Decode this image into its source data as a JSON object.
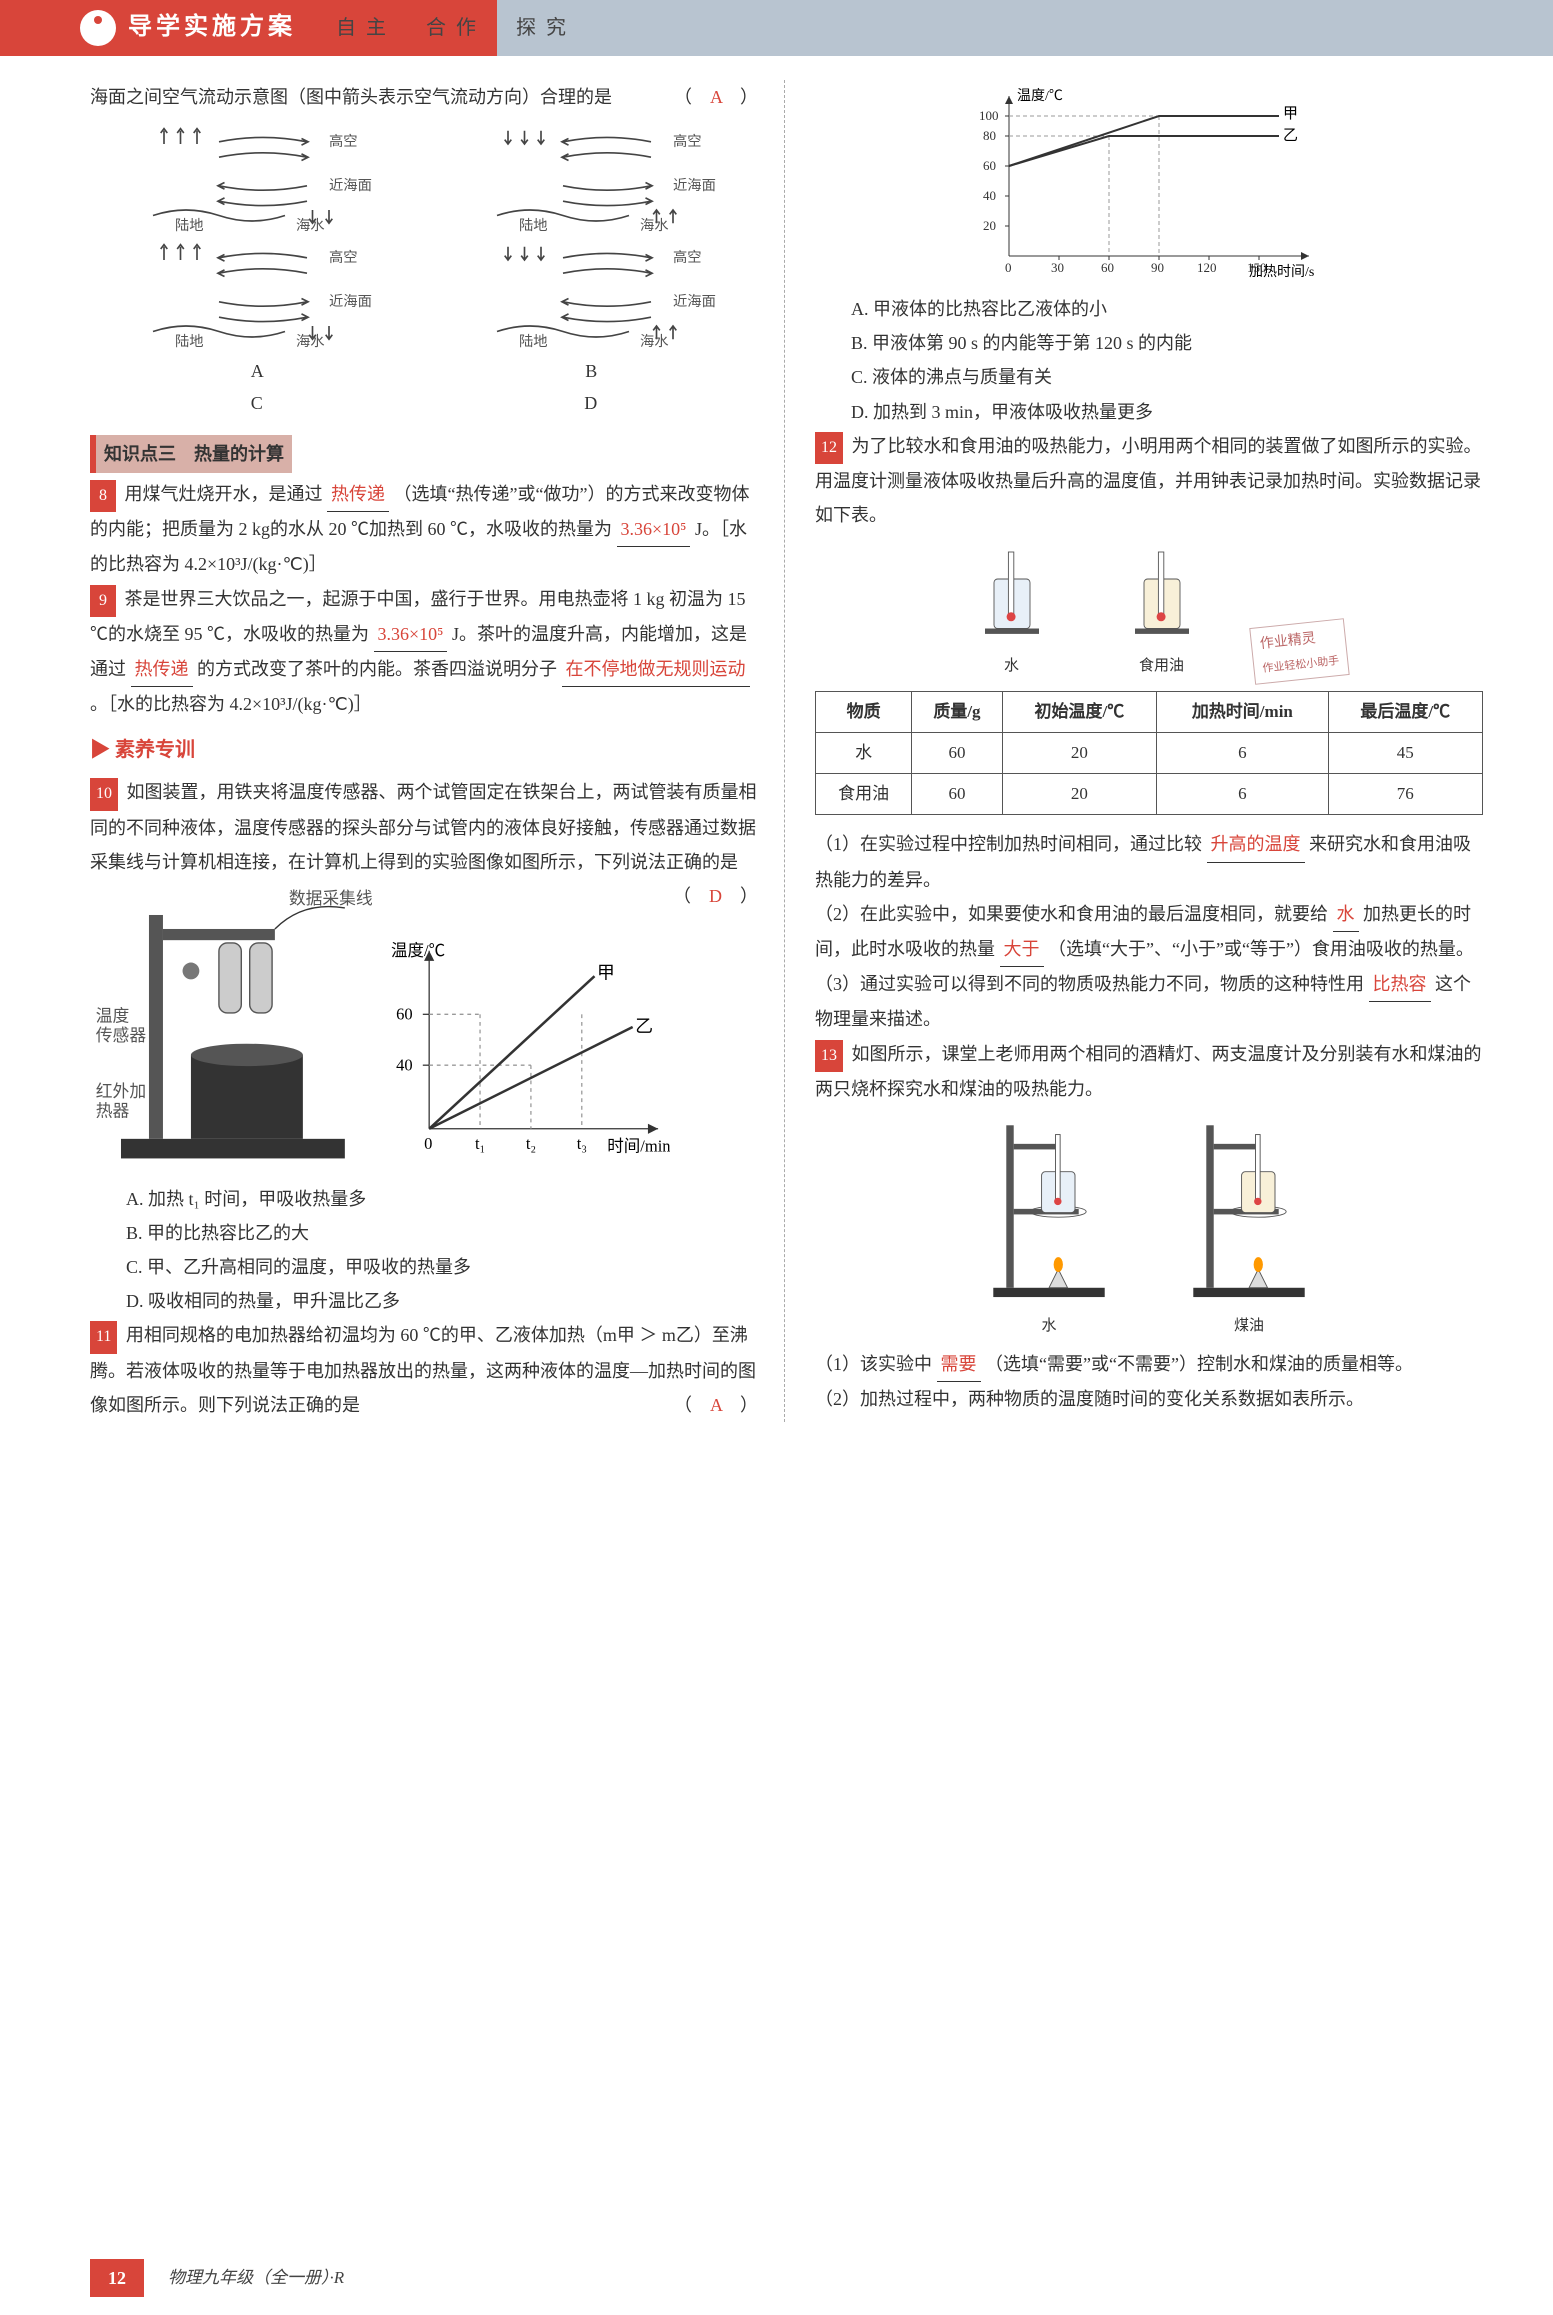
{
  "header": {
    "title": "导学实施方案",
    "subtitle": "自主　合作　探究"
  },
  "left": {
    "intro": "海面之间空气流动示意图（图中箭头表示空气流动方向）合理的是",
    "intro_answer": "A",
    "diagram_labels": {
      "gaokong": "高空",
      "jinhaimian": "近海面",
      "ludi": "陆地",
      "haishui": "海水",
      "letters": [
        "A",
        "B",
        "C",
        "D"
      ]
    },
    "knowledge3": "知识点三　热量的计算",
    "q8": {
      "num": "8",
      "pre": "用煤气灶烧开水，是通过",
      "blank1": "热传递",
      "mid1": "（选填“热传递”或“做功”）的方式来改变物体的内能；把质量为 2 kg的水从 20 ℃加热到 60 ℃，水吸收的热量为",
      "blank2": "3.36×10⁵",
      "mid2": "J。［水的比热容为 4.2×10³J/(kg·℃)］"
    },
    "q9": {
      "num": "9",
      "pre": "茶是世界三大饮品之一，起源于中国，盛行于世界。用电热壶将 1 kg 初温为 15 ℃的水烧至 95 ℃，水吸收的热量为",
      "blank1": "3.36×10⁵",
      "mid1": "J。茶叶的温度升高，内能增加，这是通过",
      "blank2": "热传递",
      "mid2": "的方式改变了茶叶的内能。茶香四溢说明分子",
      "blank3": "在不停地做无规则运动",
      "tail": "。［水的比热容为 4.2×10³J/(kg·℃)］"
    },
    "suyang": "▶ 素养专训",
    "q10": {
      "num": "10",
      "text": "如图装置，用铁夹将温度传感器、两个试管固定在铁架台上，两试管装有质量相同的不同种液体，温度传感器的探头部分与试管内的液体良好接触，传感器通过数据采集线与计算机相连接，在计算机上得到的实验图像如图所示，下列说法正确的是",
      "answer": "D",
      "fig_labels": {
        "shujucaiji": "数据采集线",
        "wendu_chuanganqi": "温度传感器",
        "hongwai_jiareqi": "红外加热器",
        "y_axis": "温度/℃",
        "x_axis": "时间/min",
        "y60": "60",
        "y40": "40",
        "jiA": "甲",
        "yiB": "乙",
        "t1": "t₁",
        "t2": "t₂",
        "t3": "t₃"
      },
      "opts": {
        "A": "A. 加热 t₁ 时间，甲吸收热量多",
        "B": "B. 甲的比热容比乙的大",
        "C": "C. 甲、乙升高相同的温度，甲吸收的热量多",
        "D": "D. 吸收相同的热量，甲升温比乙多"
      }
    },
    "q11": {
      "num": "11",
      "text": "用相同规格的电加热器给初温均为 60 ℃的甲、乙液体加热（m甲 ＞ m乙）至沸腾。若液体吸收的热量等于电加热器放出的热量，这两种液体的温度—加热时间的图像如图所示。则下列说法正确的是",
      "answer": "A"
    }
  },
  "right": {
    "chart11": {
      "y_axis": "温度/℃",
      "x_axis": "加热时间/s",
      "y_ticks": [
        "20",
        "40",
        "60",
        "80",
        "100"
      ],
      "x_ticks": [
        "0",
        "30",
        "60",
        "90",
        "120",
        "150"
      ],
      "jiA": "甲",
      "yiB": "乙",
      "lines": {
        "jia": [
          [
            0,
            60
          ],
          [
            90,
            100
          ],
          [
            150,
            100
          ]
        ],
        "yi": [
          [
            0,
            60
          ],
          [
            60,
            80
          ],
          [
            150,
            80
          ]
        ]
      },
      "axis_color": "#333",
      "grid_color": "#999",
      "line_color": "#333"
    },
    "q11_opts": {
      "A": "A. 甲液体的比热容比乙液体的小",
      "B": "B. 甲液体第 90 s 的内能等于第 120 s 的内能",
      "C": "C. 液体的沸点与质量有关",
      "D": "D. 加热到 3 min，甲液体吸收热量更多"
    },
    "q12": {
      "num": "12",
      "intro": "为了比较水和食用油的吸热能力，小明用两个相同的装置做了如图所示的实验。用温度计测量液体吸收热量后升高的温度值，并用钟表记录加热时间。实验数据记录如下表。",
      "beaker_labels": {
        "water": "水",
        "oil": "食用油"
      },
      "note1": "作业精灵",
      "note2": "作业轻松小助手",
      "table": {
        "headers": [
          "物质",
          "质量/g",
          "初始温度/℃",
          "加热时间/min",
          "最后温度/℃"
        ],
        "rows": [
          [
            "水",
            "60",
            "20",
            "6",
            "45"
          ],
          [
            "食用油",
            "60",
            "20",
            "6",
            "76"
          ]
        ]
      },
      "part1_pre": "（1）在实验过程中控制加热时间相同，通过比较",
      "part1_blank": "升高的温度",
      "part1_post": "来研究水和食用油吸热能力的差异。",
      "part2_pre": "（2）在此实验中，如果要使水和食用油的最后温度相同，就要给",
      "part2_blank1": "水",
      "part2_mid": "加热更长的时间，此时水吸收的热量",
      "part2_blank2": "大于",
      "part2_post": "（选填“大于”、“小于”或“等于”）食用油吸收的热量。",
      "part3_pre": "（3）通过实验可以得到不同的物质吸热能力不同，物质的这种特性用",
      "part3_blank": "比热容",
      "part3_post": "这个物理量来描述。"
    },
    "q13": {
      "num": "13",
      "intro": "如图所示，课堂上老师用两个相同的酒精灯、两支温度计及分别装有水和煤油的两只烧杯探究水和煤油的吸热能力。",
      "stand_labels": {
        "water": "水",
        "meiyou": "煤油"
      },
      "part1_pre": "（1）该实验中",
      "part1_blank": "需要",
      "part1_post": "（选填“需要”或“不需要”）控制水和煤油的质量相等。",
      "part2": "（2）加热过程中，两种物质的温度随时间的变化关系数据如表所示。"
    }
  },
  "footer": {
    "page": "12",
    "text": "物理九年级（全一册）·R"
  }
}
